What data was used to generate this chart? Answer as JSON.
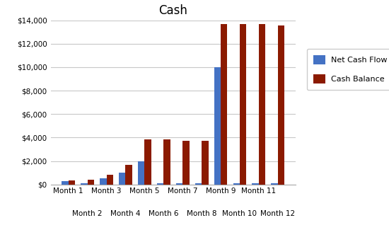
{
  "title": "Cash",
  "categories": [
    "Month 1",
    "Month 2",
    "Month 3",
    "Month 4",
    "Month 5",
    "Month 6",
    "Month 7",
    "Month 8",
    "Month 9",
    "Month 10",
    "Month 11",
    "Month 12"
  ],
  "net_cash_flow": [
    300,
    100,
    500,
    1000,
    2000,
    100,
    100,
    100,
    10000,
    100,
    100,
    100
  ],
  "cash_balance": [
    350,
    400,
    800,
    1700,
    3850,
    3850,
    3750,
    3700,
    13700,
    13700,
    13650,
    13550
  ],
  "bar_color_blue": "#4472C4",
  "bar_color_red": "#8B1A00",
  "background_color": "#FFFFFF",
  "plot_bg_color": "#FFFFFF",
  "grid_color": "#C8C8C8",
  "ylim": [
    0,
    14000
  ],
  "yticks": [
    0,
    2000,
    4000,
    6000,
    8000,
    10000,
    12000,
    14000
  ],
  "legend_labels": [
    "Net Cash Flow",
    "Cash Balance"
  ],
  "figsize": [
    5.5,
    3.18
  ],
  "dpi": 100
}
